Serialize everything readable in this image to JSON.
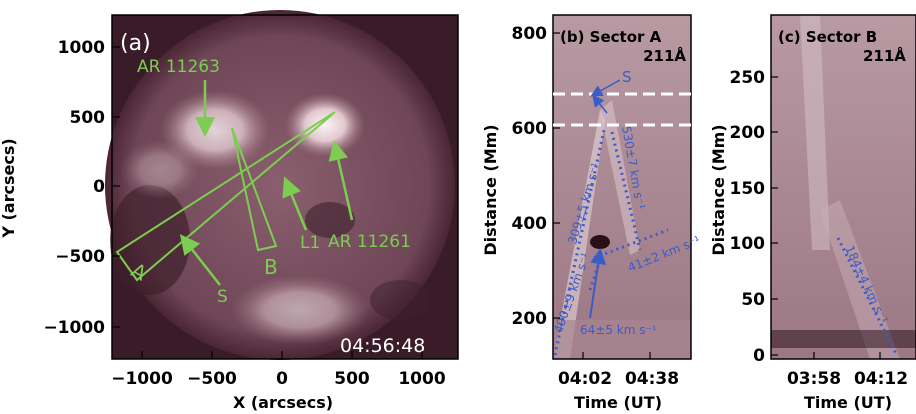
{
  "panel_a": {
    "tag": "(a)",
    "time": "04:56:48",
    "xlabel": "X (arcsecs)",
    "ylabel": "Y (arcsecs)",
    "xticks": [
      "−1000",
      "−500",
      "0",
      "500",
      "1000"
    ],
    "yticks": [
      "1000",
      "500",
      "0",
      "−500",
      "−1000"
    ],
    "labels": {
      "ar1": "AR 11263",
      "ar2": "AR 11261",
      "sector_a": "A",
      "sector_b": "B",
      "l1": "L1",
      "s": "S"
    }
  },
  "panel_b": {
    "tag": "(b) Sector A",
    "wavelength": "211Å",
    "xlabel": "Time (UT)",
    "ylabel": "Distance (Mm)",
    "xticks": [
      "04:02",
      "04:38"
    ],
    "yticks": [
      "800",
      "600",
      "400",
      "200"
    ],
    "s_label": "S",
    "speeds": [
      "309±5 km s⁻¹",
      "530±7 km s⁻¹",
      "41±2 km s⁻¹",
      "64±5 km s⁻¹",
      "490±9 km s⁻¹"
    ]
  },
  "panel_c": {
    "tag": "(c) Sector B",
    "wavelength": "211Å",
    "xlabel": "Time (UT)",
    "ylabel": "Distance (Mm)",
    "xticks": [
      "03:58",
      "04:12"
    ],
    "yticks": [
      "250",
      "200",
      "150",
      "100",
      "50",
      "0"
    ],
    "speed": "184±4 km s⁻¹"
  },
  "colors": {
    "green": "#7ccd52",
    "blue": "#3b5cc6",
    "bg": "#4f2a38"
  }
}
